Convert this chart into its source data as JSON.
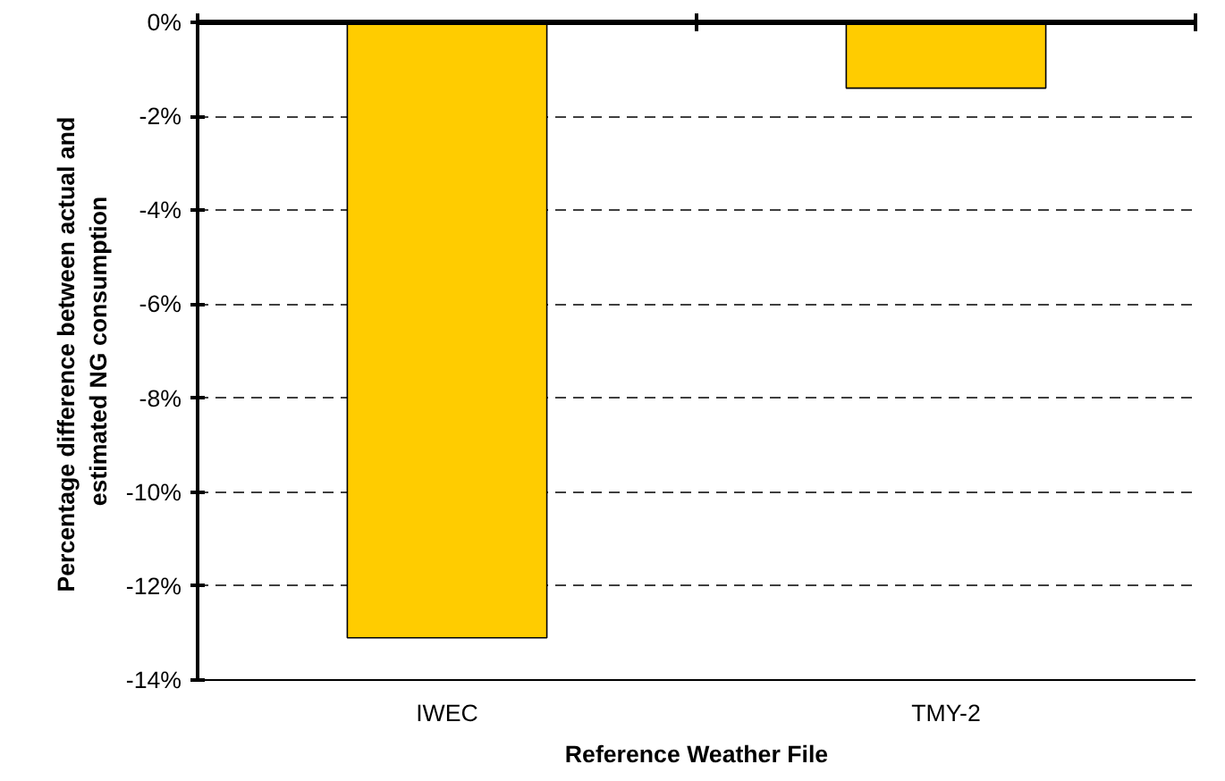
{
  "chart_data": {
    "type": "bar",
    "xlabel": "Reference Weather File",
    "ylabel": "Percentage difference  between actual and\nestimated NG consumption",
    "categories": [
      "IWEC",
      "TMY-2"
    ],
    "values": [
      -13.1,
      -1.4
    ],
    "color": "#ffcc00",
    "ylim": [
      -14,
      0
    ],
    "yticks": [
      {
        "value": -14,
        "label": "-14%"
      },
      {
        "value": -12,
        "label": "-12%"
      },
      {
        "value": -10,
        "label": "-10%"
      },
      {
        "value": -8,
        "label": "-8%"
      },
      {
        "value": -6,
        "label": "-6%"
      },
      {
        "value": -4,
        "label": "-4%"
      },
      {
        "value": -2,
        "label": "-2%"
      },
      {
        "value": 0,
        "label": "0%"
      }
    ],
    "grid": "y"
  }
}
